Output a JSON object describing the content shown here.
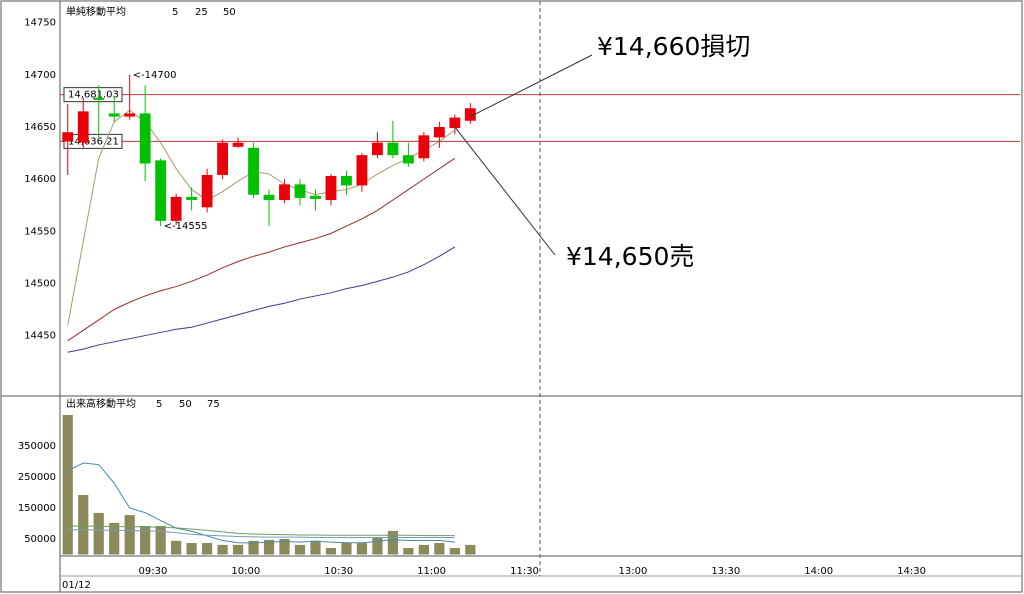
{
  "chart_data": [
    {
      "type": "candlestick",
      "legend_title": "単純移動平均",
      "open": [
        14636,
        14635,
        14678,
        14663,
        14660,
        14663,
        14618,
        14560,
        14583,
        14573,
        14604,
        14631,
        14630,
        14585,
        14580,
        14595,
        14584,
        14580,
        14603,
        14594,
        14623,
        14635,
        14623,
        14620,
        14640,
        14649,
        14656
      ],
      "high": [
        14672,
        14678,
        14690,
        14680,
        14700,
        14690,
        14620,
        14586,
        14592,
        14610,
        14638,
        14640,
        14635,
        14590,
        14600,
        14600,
        14590,
        14605,
        14608,
        14625,
        14645,
        14656,
        14635,
        14645,
        14655,
        14662,
        14673
      ],
      "low": [
        14604,
        14630,
        14640,
        14655,
        14657,
        14598,
        14555,
        14556,
        14570,
        14568,
        14600,
        14630,
        14582,
        14555,
        14577,
        14575,
        14570,
        14575,
        14585,
        14588,
        14620,
        14620,
        14612,
        14617,
        14630,
        14643,
        14653
      ],
      "close": [
        14645,
        14665,
        14676,
        14660,
        14663,
        14615,
        14560,
        14583,
        14580,
        14604,
        14635,
        14635,
        14585,
        14580,
        14595,
        14582,
        14581,
        14603,
        14594,
        14623,
        14635,
        14623,
        14615,
        14642,
        14650,
        14659,
        14668
      ],
      "up_color": "#e8000b",
      "down_color": "#00c000",
      "series": [
        {
          "name": "5",
          "color": "#a89a6c",
          "values": [
            14460,
            14540,
            14620,
            14655,
            14666,
            14655,
            14635,
            14610,
            14590,
            14580,
            14588,
            14598,
            14607,
            14605,
            14595,
            14590,
            14585,
            14588,
            14590,
            14595,
            14605,
            14613,
            14620,
            14628,
            14636,
            14647,
            null
          ]
        },
        {
          "name": "25",
          "color": "#9a2a2a",
          "values": [
            14445,
            14455,
            14465,
            14475,
            14482,
            14488,
            14493,
            14497,
            14502,
            14508,
            14515,
            14521,
            14526,
            14530,
            14535,
            14539,
            14543,
            14548,
            14555,
            14562,
            14570,
            14580,
            14590,
            14600,
            14610,
            14620,
            null
          ]
        },
        {
          "name": "50",
          "color": "#3a3a8a",
          "values": [
            14434,
            14437,
            14441,
            14444,
            14447,
            14450,
            14453,
            14456,
            14458,
            14462,
            14466,
            14470,
            14474,
            14478,
            14481,
            14485,
            14488,
            14491,
            14495,
            14498,
            14502,
            14506,
            14511,
            14518,
            14526,
            14535,
            null
          ]
        }
      ],
      "legend_colors": [
        "#b8a070",
        "#b06060",
        "#6060a8"
      ],
      "ylim": [
        14393,
        14767
      ],
      "yticks": [
        14450,
        14500,
        14550,
        14600,
        14650,
        14700,
        14750
      ],
      "hlines": [
        {
          "value": 14681.03,
          "label": "14,681.03",
          "color": "#c03a3a"
        },
        {
          "value": 14636.21,
          "label": "14,636.21",
          "color": "#c03a3a"
        }
      ],
      "annotations": [
        {
          "label": "<-14700",
          "value": 14700,
          "color": "#e00000"
        },
        {
          "label": "<-14555",
          "value": 14555,
          "color": "#00b000"
        }
      ]
    },
    {
      "type": "volume",
      "legend_title": "出来高移動平均",
      "values": [
        450000,
        192000,
        134000,
        102000,
        127000,
        92000,
        92000,
        44000,
        37000,
        37000,
        31000,
        31000,
        44000,
        47000,
        50000,
        31000,
        44000,
        21000,
        37000,
        37000,
        56000,
        76000,
        21000,
        31000,
        37000,
        21000,
        31000
      ],
      "color": "#8c8a5a",
      "series": [
        {
          "name": "5",
          "color": "#4a8aa0",
          "values": [
            270000,
            295000,
            290000,
            230000,
            150000,
            135000,
            110000,
            85000,
            75000,
            60000,
            45000,
            38000,
            37000,
            40000,
            42000,
            40000,
            43000,
            40000,
            38000,
            38000,
            42000,
            48000,
            45000,
            45000,
            45000,
            40000,
            null
          ]
        },
        {
          "name": "50",
          "color": "#7a9ac0",
          "values": [
            80000,
            80000,
            79000,
            78000,
            77000,
            76000,
            75000,
            70000,
            65000,
            62000,
            60000,
            58000,
            57000,
            56000,
            56000,
            56000,
            55000,
            55000,
            55000,
            55000,
            55000,
            55000,
            55000,
            55000,
            55000,
            55000,
            null
          ]
        },
        {
          "name": "75",
          "color": "#6aa060",
          "values": [
            92000,
            92000,
            91000,
            90000,
            90000,
            89000,
            88000,
            86000,
            82000,
            78000,
            73000,
            68000,
            66000,
            65000,
            64000,
            63000,
            63000,
            62000,
            62000,
            62000,
            62000,
            62000,
            62000,
            61000,
            61000,
            61000,
            null
          ]
        }
      ],
      "legend_colors": [
        "#5a9aa8",
        "#6a9ab8",
        "#70a068"
      ],
      "ylim": [
        0,
        508000
      ],
      "yticks": [
        50000,
        150000,
        250000,
        350000
      ]
    }
  ],
  "xlim": [
    0,
    62
  ],
  "xticks": [
    {
      "value": 6,
      "label": "09:30"
    },
    {
      "value": 12,
      "label": "10:00"
    },
    {
      "value": 18,
      "label": "10:30"
    },
    {
      "value": 24,
      "label": "11:00"
    },
    {
      "value": 30,
      "label": "11:30"
    },
    {
      "value": 37,
      "label": "13:00"
    },
    {
      "value": 43,
      "label": "13:30"
    },
    {
      "value": 49,
      "label": "14:00"
    },
    {
      "value": 55,
      "label": "14:30"
    }
  ],
  "date": "01/12",
  "callouts": [
    {
      "label": "¥14,660損切",
      "value": 14660
    },
    {
      "label": "¥14,650売",
      "value": 14650
    }
  ]
}
